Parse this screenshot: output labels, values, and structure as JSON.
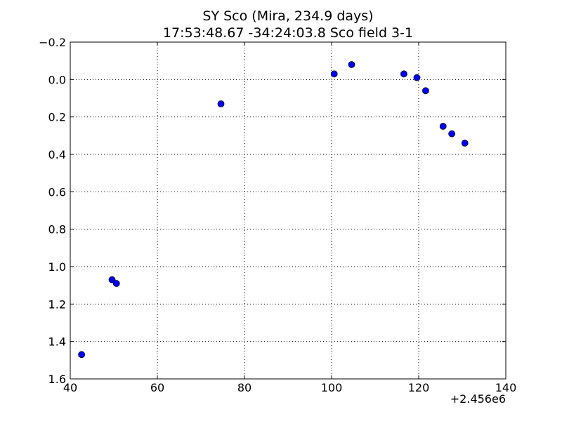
{
  "chart_data": {
    "type": "scatter",
    "title": "SY Sco (Mira, 234.9 days)",
    "subtitle": "17:53:48.67 -34:24:03.8 Sco field 3-1",
    "xlabel": "",
    "ylabel": "",
    "x_offset_label": "+2.456e6",
    "xlim": [
      40,
      140
    ],
    "ylim": [
      1.6,
      -0.2
    ],
    "y_inverted": true,
    "grid": true,
    "grid_style": "dotted",
    "marker_color": "#0000ff",
    "x_ticks": [
      40,
      60,
      80,
      100,
      120,
      140
    ],
    "y_ticks": [
      -0.2,
      0.0,
      0.2,
      0.4,
      0.6,
      0.8,
      1.0,
      1.2,
      1.4,
      1.6
    ],
    "x_tick_labels": [
      "40",
      "60",
      "80",
      "100",
      "120",
      "140"
    ],
    "y_tick_labels": [
      "−0.2",
      "0.0",
      "0.2",
      "0.4",
      "0.6",
      "0.8",
      "1.0",
      "1.2",
      "1.4",
      "1.6"
    ],
    "series": [
      {
        "x": [
          42.6,
          49.6,
          50.6,
          74.6,
          100.6,
          104.6,
          116.6,
          119.6,
          121.6,
          125.6,
          127.6,
          130.6
        ],
        "y": [
          1.47,
          1.07,
          1.09,
          0.13,
          -0.03,
          -0.08,
          -0.03,
          -0.01,
          0.06,
          0.25,
          0.29,
          0.34
        ]
      }
    ]
  }
}
